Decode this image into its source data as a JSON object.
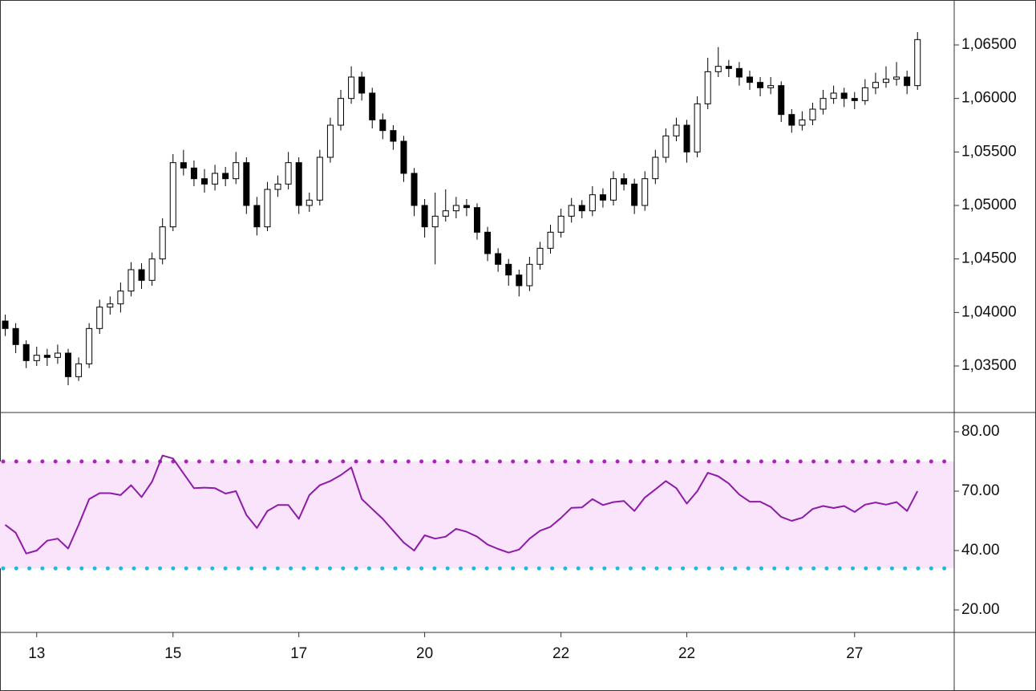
{
  "chart_data": [
    {
      "type": "candlestick",
      "categories": [
        null,
        null,
        null,
        "13",
        null,
        null,
        null,
        null,
        null,
        null,
        null,
        null,
        null,
        null,
        null,
        null,
        "15",
        null,
        null,
        null,
        null,
        null,
        null,
        null,
        null,
        null,
        null,
        null,
        "17",
        null,
        null,
        null,
        null,
        null,
        null,
        null,
        null,
        null,
        null,
        null,
        "20",
        null,
        null,
        null,
        null,
        null,
        null,
        null,
        null,
        null,
        null,
        null,
        null,
        "22",
        null,
        null,
        null,
        null,
        null,
        null,
        null,
        null,
        null,
        null,
        null,
        "22",
        null,
        null,
        null,
        null,
        null,
        null,
        null,
        null,
        null,
        null,
        null,
        null,
        null,
        null,
        null,
        "27",
        null,
        null,
        null,
        null,
        null,
        null
      ],
      "open": [
        1.0392,
        1.0385,
        1.037,
        1.0355,
        1.036,
        1.0358,
        1.0362,
        1.034,
        1.0352,
        1.0385,
        1.0405,
        1.0408,
        1.042,
        1.044,
        1.043,
        1.045,
        1.048,
        1.054,
        1.0535,
        1.0525,
        1.052,
        1.053,
        1.0525,
        1.054,
        1.05,
        1.048,
        1.0515,
        1.052,
        1.054,
        1.05,
        1.0505,
        1.0545,
        1.0575,
        1.06,
        1.062,
        1.0605,
        1.058,
        1.057,
        1.056,
        1.053,
        1.05,
        1.048,
        1.049,
        1.0495,
        1.05,
        1.0498,
        1.0475,
        1.0455,
        1.0445,
        1.0435,
        1.0425,
        1.0445,
        1.046,
        1.0475,
        1.049,
        1.05,
        1.0495,
        1.051,
        1.0505,
        1.0525,
        1.052,
        1.05,
        1.0525,
        1.0545,
        1.0565,
        1.0575,
        1.055,
        1.0595,
        1.0625,
        1.063,
        1.0628,
        1.062,
        1.0615,
        1.061,
        1.0612,
        1.0585,
        1.0575,
        1.058,
        1.059,
        1.06,
        1.0605,
        1.06,
        1.0598,
        1.061,
        1.0615,
        1.0618,
        1.062,
        1.0612
      ],
      "high": [
        1.0398,
        1.039,
        1.0374,
        1.0368,
        1.0366,
        1.037,
        1.0366,
        1.0358,
        1.039,
        1.0412,
        1.0415,
        1.0428,
        1.0447,
        1.0446,
        1.0456,
        1.0488,
        1.0548,
        1.0552,
        1.0542,
        1.0534,
        1.0538,
        1.0536,
        1.055,
        1.0545,
        1.0508,
        1.0522,
        1.0528,
        1.055,
        1.0545,
        1.0512,
        1.0552,
        1.0582,
        1.0608,
        1.063,
        1.0625,
        1.061,
        1.0586,
        1.0575,
        1.0565,
        1.0535,
        1.0506,
        1.0512,
        1.0515,
        1.0508,
        1.0506,
        1.0502,
        1.048,
        1.046,
        1.045,
        1.044,
        1.0452,
        1.0466,
        1.0482,
        1.0497,
        1.0507,
        1.0505,
        1.0518,
        1.0516,
        1.0532,
        1.053,
        1.0525,
        1.0532,
        1.0552,
        1.0572,
        1.0582,
        1.058,
        1.0602,
        1.0638,
        1.0648,
        1.0636,
        1.0634,
        1.0626,
        1.062,
        1.062,
        1.0616,
        1.059,
        1.0588,
        1.0596,
        1.0608,
        1.0612,
        1.061,
        1.0606,
        1.0618,
        1.0624,
        1.063,
        1.0634,
        1.0626,
        1.0662
      ],
      "low": [
        1.0378,
        1.0362,
        1.0348,
        1.035,
        1.035,
        1.0352,
        1.0332,
        1.0336,
        1.0348,
        1.038,
        1.0398,
        1.04,
        1.0415,
        1.0422,
        1.0425,
        1.0445,
        1.0476,
        1.0528,
        1.0518,
        1.0512,
        1.0514,
        1.0518,
        1.052,
        1.0492,
        1.0472,
        1.0476,
        1.0508,
        1.0515,
        1.0492,
        1.0494,
        1.05,
        1.054,
        1.057,
        1.0595,
        1.0598,
        1.0572,
        1.0562,
        1.0552,
        1.0522,
        1.049,
        1.047,
        1.0445,
        1.0485,
        1.0488,
        1.049,
        1.0468,
        1.0448,
        1.0438,
        1.0425,
        1.0415,
        1.042,
        1.044,
        1.0455,
        1.047,
        1.0484,
        1.0488,
        1.049,
        1.0498,
        1.05,
        1.0514,
        1.0492,
        1.0495,
        1.052,
        1.054,
        1.056,
        1.054,
        1.0545,
        1.059,
        1.062,
        1.062,
        1.0612,
        1.0608,
        1.0602,
        1.0604,
        1.0578,
        1.0568,
        1.057,
        1.0575,
        1.0585,
        1.0595,
        1.0592,
        1.059,
        1.0594,
        1.0604,
        1.061,
        1.0612,
        1.0604,
        1.0608
      ],
      "close": [
        1.0385,
        1.037,
        1.0355,
        1.036,
        1.0358,
        1.0362,
        1.034,
        1.0352,
        1.0385,
        1.0405,
        1.0408,
        1.042,
        1.044,
        1.043,
        1.045,
        1.048,
        1.054,
        1.0535,
        1.0525,
        1.052,
        1.053,
        1.0525,
        1.054,
        1.05,
        1.048,
        1.0515,
        1.052,
        1.054,
        1.05,
        1.0505,
        1.0545,
        1.0575,
        1.06,
        1.062,
        1.0605,
        1.058,
        1.057,
        1.056,
        1.053,
        1.05,
        1.048,
        1.049,
        1.0495,
        1.05,
        1.0498,
        1.0475,
        1.0455,
        1.0445,
        1.0435,
        1.0425,
        1.0445,
        1.046,
        1.0475,
        1.049,
        1.05,
        1.0495,
        1.051,
        1.0505,
        1.0525,
        1.052,
        1.05,
        1.0525,
        1.0545,
        1.0565,
        1.0575,
        1.055,
        1.0595,
        1.0625,
        1.063,
        1.0628,
        1.062,
        1.0615,
        1.061,
        1.0612,
        1.0585,
        1.0575,
        1.058,
        1.059,
        1.06,
        1.0605,
        1.06,
        1.0598,
        1.061,
        1.0615,
        1.0618,
        1.062,
        1.0612,
        1.0655
      ],
      "up_color": "#ffffff",
      "down_color": "#000000",
      "edge_color": "#000000",
      "ylim": [
        1.03065,
        1.0692
      ],
      "yticks": [
        {
          "value": 1.035,
          "label": "1,03500"
        },
        {
          "value": 1.04,
          "label": "1,04000"
        },
        {
          "value": 1.045,
          "label": "1,04500"
        },
        {
          "value": 1.05,
          "label": "1,05000"
        },
        {
          "value": 1.055,
          "label": "1,05500"
        },
        {
          "value": 1.06,
          "label": "1,06000"
        },
        {
          "value": 1.065,
          "label": "1,06500"
        }
      ]
    },
    {
      "type": "line",
      "values": [
        53,
        49,
        39,
        40,
        45,
        46,
        41,
        53,
        66,
        69,
        69,
        68,
        71,
        67,
        71.6,
        76,
        75.5,
        73,
        70.5,
        70.6,
        70.5,
        68.8,
        70,
        58,
        51.4,
        60,
        63,
        63,
        56,
        68,
        71,
        71.7,
        72.7,
        74,
        66,
        61,
        56,
        50,
        44,
        40,
        47.7,
        46,
        47,
        51,
        49.5,
        47,
        43,
        40.8,
        39.3,
        40.5,
        46,
        50,
        52,
        56.5,
        61.6,
        61.8,
        66,
        63,
        64.5,
        65,
        60,
        66.8,
        70.3,
        71.7,
        70.5,
        63.7,
        70,
        73.1,
        72.5,
        71.3,
        68.3,
        64.7,
        64.7,
        62,
        57,
        55,
        56.6,
        61,
        62.5,
        61.5,
        62.5,
        59.5,
        63.2,
        64.3,
        63.2,
        64.5,
        60,
        70
      ],
      "color": "#8e1aa8",
      "levels": [
        {
          "value": 75,
          "color": "#b020c0"
        },
        {
          "value": 34,
          "color": "#22b8e0"
        }
      ],
      "level_fill": "#f9e4fb",
      "yticks": [
        {
          "value": 20,
          "label": "20.00"
        },
        {
          "value": 40,
          "label": "40.00"
        },
        {
          "value": 70,
          "label": "70.00"
        },
        {
          "value": 80,
          "label": "80.00"
        }
      ]
    }
  ]
}
